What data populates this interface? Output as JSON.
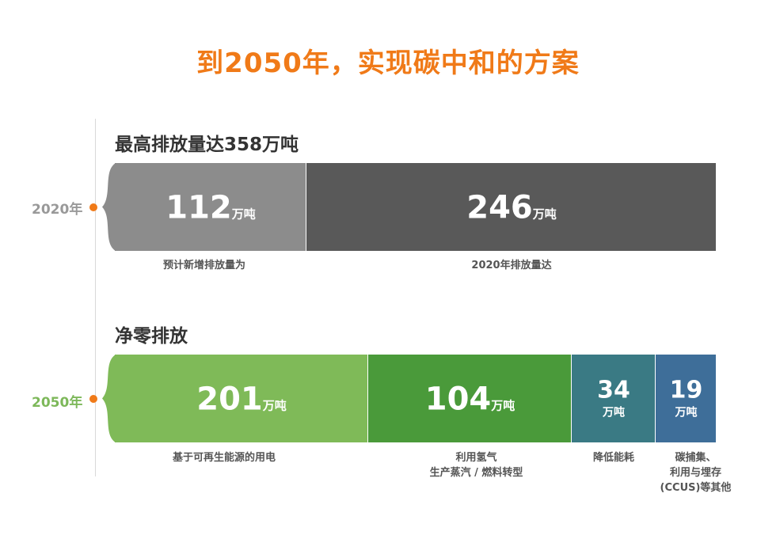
{
  "title": "到2050年，实现碳中和的方案",
  "rows": [
    {
      "year": "2020年",
      "year_color": "#999999",
      "heading": "最高排放量达358万吨",
      "segments": [
        {
          "value": "112",
          "unit": "万吨",
          "caption": "预计新增排放量为",
          "color": "#8c8c8c"
        },
        {
          "value": "246",
          "unit": "万吨",
          "caption": "2020年排放量达",
          "color": "#595959"
        }
      ]
    },
    {
      "year": "2050年",
      "year_color": "#7db85a",
      "heading": "净零排放",
      "segments": [
        {
          "value": "201",
          "unit": "万吨",
          "caption": "基于可再生能源的用电",
          "color": "#7fba58"
        },
        {
          "value": "104",
          "unit": "万吨",
          "caption": "利用氢气\n生产蒸汽 /  燃料转型",
          "color": "#4a9a3a"
        },
        {
          "value": "34",
          "unit": "万吨",
          "caption": "降低能耗",
          "color": "#3a7a84"
        },
        {
          "value": "19",
          "unit": "万吨",
          "caption": "碳捕集、\n利用与埋存\n(CCUS)等其他",
          "color": "#3e6e99"
        }
      ]
    }
  ],
  "chart_data": {
    "type": "bar",
    "orientation": "horizontal-stacked",
    "unit": "万吨",
    "categories": [
      "2020年",
      "2050年"
    ],
    "series": [
      {
        "name": "预计新增排放量为",
        "category": "2020年",
        "value": 112
      },
      {
        "name": "2020年排放量达",
        "category": "2020年",
        "value": 246
      },
      {
        "name": "基于可再生能源的用电",
        "category": "2050年",
        "value": 201
      },
      {
        "name": "利用氢气 生产蒸汽 / 燃料转型",
        "category": "2050年",
        "value": 104
      },
      {
        "name": "降低能耗",
        "category": "2050年",
        "value": 34
      },
      {
        "name": "碳捕集、利用与埋存 (CCUS)等其他",
        "category": "2050年",
        "value": 19
      }
    ]
  }
}
